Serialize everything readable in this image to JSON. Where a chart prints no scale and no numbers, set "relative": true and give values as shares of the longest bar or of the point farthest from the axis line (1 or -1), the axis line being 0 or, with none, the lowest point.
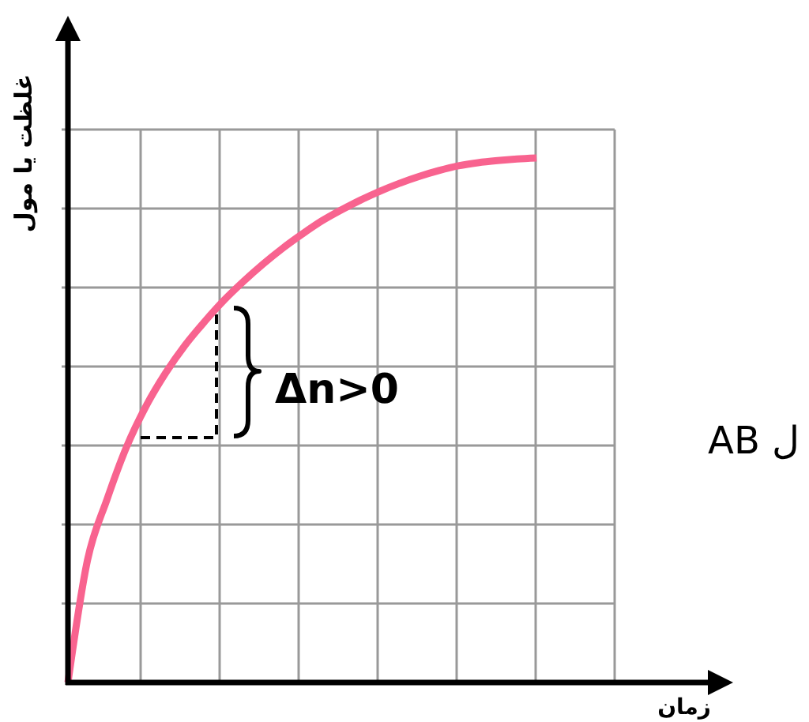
{
  "chart_data": {
    "type": "line",
    "relative": true,
    "xlabel": "زمان",
    "ylabel": "غلظت یا مول",
    "categories": [
      null,
      null,
      null,
      null,
      null,
      null,
      null,
      null,
      null,
      null,
      null,
      null,
      null,
      null,
      null,
      null,
      null,
      null,
      null,
      null,
      null,
      null,
      null,
      null,
      null,
      null,
      null,
      null,
      null
    ],
    "values": [
      0,
      0.233,
      0.349,
      0.449,
      0.527,
      0.59,
      0.643,
      0.688,
      0.729,
      0.765,
      0.798,
      0.828,
      0.855,
      0.88,
      0.901,
      0.92,
      0.937,
      0.952,
      0.965,
      0.976,
      0.985,
      0.991,
      0.995,
      0.998,
      1,
      null,
      null,
      null,
      null
    ],
    "color": "#f8638f",
    "grid": true,
    "annotations": [
      "Δn>0",
      "ل AB"
    ]
  }
}
